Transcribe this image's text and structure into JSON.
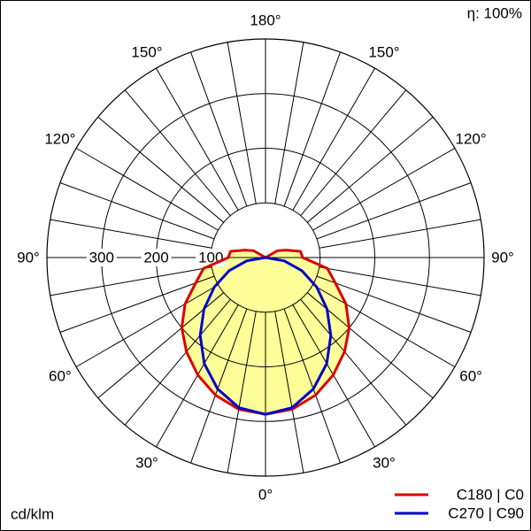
{
  "chart_data": {
    "type": "polar",
    "efficiency_label": "η: 100%",
    "unit_label": "cd/klm",
    "rlim": [
      0,
      400
    ],
    "rticks": [
      100,
      200,
      300
    ],
    "angle_ticks": [
      {
        "value": 0,
        "label": "0°"
      },
      {
        "value": 30,
        "label": "30°"
      },
      {
        "value": 60,
        "label": "60°"
      },
      {
        "value": 90,
        "label": "90°"
      },
      {
        "value": 120,
        "label": "120°"
      },
      {
        "value": 150,
        "label": "150°"
      },
      {
        "value": 180,
        "label": "180°"
      }
    ],
    "angles": [
      0,
      10,
      20,
      30,
      40,
      50,
      60,
      70,
      80,
      90,
      100,
      110,
      120,
      130,
      140,
      150,
      160,
      170,
      180
    ],
    "fill_color": "#ffff99",
    "series": [
      {
        "name": "C180 | C0",
        "color": "#dd0000",
        "values": [
          287,
          282,
          268,
          248,
          225,
          200,
          170,
          136,
          115,
          68,
          65,
          40,
          25,
          0,
          0,
          0,
          0,
          0,
          0
        ]
      },
      {
        "name": "C270 | C90",
        "color": "#0000cc",
        "values": [
          287,
          279,
          256,
          224,
          186,
          147,
          108,
          71,
          35,
          0,
          0,
          0,
          0,
          0,
          0,
          0,
          0,
          0,
          0
        ]
      }
    ]
  }
}
